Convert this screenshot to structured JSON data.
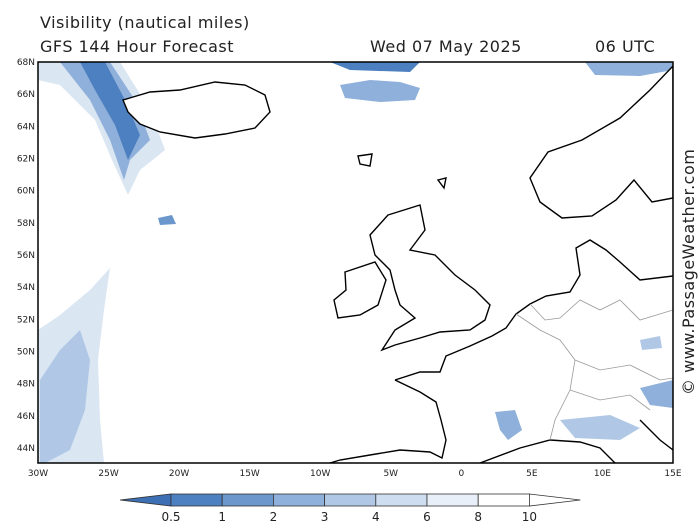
{
  "header": {
    "title": "Visibility (nautical miles)",
    "subtitle": "GFS 144 Hour Forecast",
    "date": "Wed 07 May 2025",
    "time": "06 UTC"
  },
  "map": {
    "lat_labels": [
      "68N",
      "66N",
      "64N",
      "62N",
      "60N",
      "58N",
      "56N",
      "54N",
      "52N",
      "50N",
      "48N",
      "46N",
      "44N"
    ],
    "lon_labels": [
      "30W",
      "25W",
      "20W",
      "15W",
      "10W",
      "5W",
      "0",
      "5E",
      "10E",
      "15E"
    ]
  },
  "legend": {
    "labels": [
      0.5,
      1,
      2,
      3,
      4,
      6,
      8,
      10
    ]
  },
  "watermark": "© www.PassageWeather.com"
}
